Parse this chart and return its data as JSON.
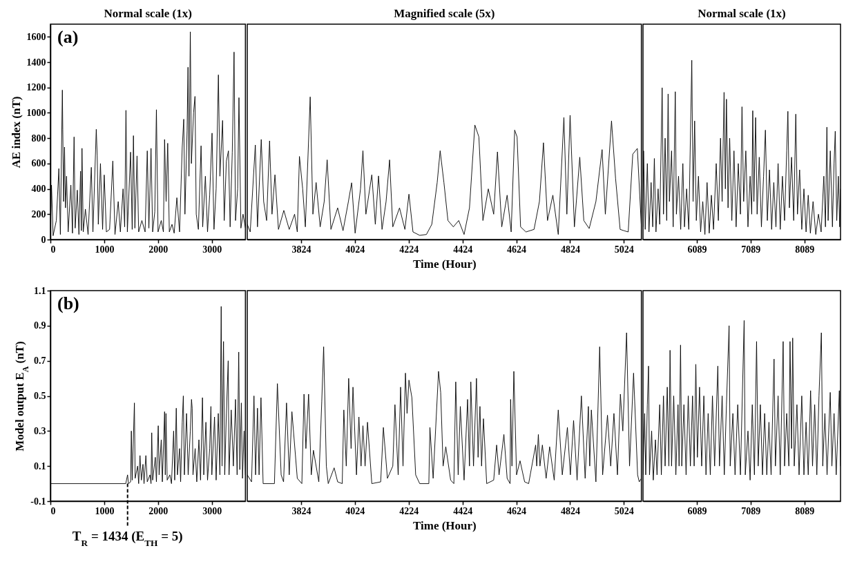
{
  "chart_data": [
    {
      "type": "line",
      "title": "Normal scale (1x)",
      "ylabel": "AE index (nT)",
      "annotations": [
        "(a)"
      ],
      "xlim": [
        0,
        3624
      ],
      "xticks": [
        0,
        1000,
        2000,
        3000
      ],
      "ylim": [
        0,
        1700
      ],
      "yticks": [
        0,
        200,
        400,
        600,
        800,
        1000,
        1200,
        1400,
        1600
      ],
      "x": [
        0,
        20,
        50,
        110,
        157,
        185,
        222,
        230,
        245,
        262,
        280,
        300,
        330,
        380,
        410,
        440,
        460,
        500,
        530,
        560,
        575,
        587,
        610,
        650,
        700,
        760,
        790,
        852,
        870,
        890,
        930,
        970,
        1000,
        1040,
        1100,
        1160,
        1200,
        1260,
        1300,
        1350,
        1380,
        1404,
        1430,
        1490,
        1520,
        1543,
        1570,
        1610,
        1640,
        1700,
        1760,
        1800,
        1830,
        1870,
        1900,
        1940,
        1970,
        2000,
        2060,
        2100,
        2122,
        2150,
        2180,
        2210,
        2260,
        2300,
        2350,
        2400,
        2450,
        2478,
        2500,
        2540,
        2557,
        2575,
        2600,
        2620,
        2660,
        2687,
        2710,
        2750,
        2800,
        2830,
        2880,
        2920,
        2960,
        3004,
        3040,
        3080,
        3122,
        3150,
        3200,
        3230,
        3270,
        3309,
        3340,
        3380,
        3413,
        3440,
        3480,
        3504,
        3540,
        3580,
        3624
      ],
      "series": [
        {
          "color": "#000000",
          "values": [
            60,
            430,
            30,
            150,
            560,
            40,
            1180,
            870,
            300,
            730,
            250,
            500,
            60,
            430,
            50,
            810,
            90,
            390,
            40,
            540,
            70,
            720,
            60,
            240,
            40,
            570,
            60,
            870,
            660,
            120,
            600,
            80,
            510,
            60,
            80,
            620,
            40,
            300,
            60,
            400,
            100,
            1020,
            60,
            690,
            80,
            820,
            90,
            660,
            60,
            150,
            60,
            700,
            90,
            720,
            60,
            220,
            1025,
            60,
            150,
            60,
            790,
            300,
            760,
            60,
            120,
            50,
            330,
            60,
            730,
            950,
            200,
            860,
            1360,
            500,
            1640,
            600,
            1000,
            1130,
            200,
            80,
            740,
            100,
            500,
            60,
            350,
            840,
            80,
            400,
            1300,
            500,
            940,
            150,
            620,
            700,
            100,
            690,
            1480,
            150,
            400,
            1120,
            90,
            200,
            90
          ]
        }
      ]
    },
    {
      "type": "line",
      "title": "Magnified scale (5x)",
      "xlabel": "Time (Hour)",
      "tick_labels": "x",
      "xlim": [
        3624,
        5089
      ],
      "xticks": [
        3824,
        4024,
        4224,
        4424,
        4624,
        4824,
        5024
      ],
      "ylim": [
        0,
        1700
      ],
      "yticks": [
        0,
        200,
        400,
        600,
        800,
        1000,
        1200,
        1400,
        1600
      ],
      "x": [
        3624,
        3635,
        3654,
        3662,
        3676,
        3685,
        3696,
        3707,
        3716,
        3727,
        3740,
        3760,
        3780,
        3800,
        3810,
        3818,
        3830,
        3840,
        3858,
        3868,
        3880,
        3895,
        3910,
        3921,
        3935,
        3960,
        3980,
        4000,
        4012,
        4025,
        4045,
        4054,
        4065,
        4087,
        4100,
        4112,
        4125,
        4140,
        4153,
        4165,
        4190,
        4210,
        4225,
        4240,
        4265,
        4290,
        4310,
        4330,
        4341,
        4355,
        4370,
        4390,
        4410,
        4430,
        4450,
        4470,
        4485,
        4500,
        4520,
        4540,
        4554,
        4570,
        4590,
        4605,
        4618,
        4627,
        4640,
        4660,
        4690,
        4710,
        4725,
        4740,
        4760,
        4780,
        4801,
        4812,
        4824,
        4840,
        4860,
        4875,
        4895,
        4920,
        4943,
        4955,
        4978,
        4993,
        5010,
        5024,
        5040,
        5057,
        5074,
        5089
      ],
      "series": [
        {
          "color": "#000000",
          "values": [
            120,
            60,
            746,
            100,
            790,
            300,
            150,
            779,
            200,
            511,
            80,
            230,
            80,
            200,
            60,
            656,
            400,
            100,
            1126,
            200,
            450,
            100,
            300,
            629,
            80,
            250,
            70,
            300,
            448,
            50,
            400,
            701,
            200,
            511,
            120,
            502,
            80,
            300,
            629,
            100,
            250,
            80,
            358,
            60,
            33,
            40,
            120,
            450,
            701,
            450,
            150,
            100,
            150,
            40,
            250,
            904,
            810,
            150,
            400,
            200,
            692,
            100,
            350,
            60,
            864,
            810,
            100,
            60,
            80,
            300,
            764,
            150,
            350,
            40,
            963,
            200,
            981,
            100,
            650,
            150,
            87,
            300,
            710,
            200,
            936,
            484,
            80,
            70,
            60,
            674,
            719,
            100
          ]
        }
      ]
    },
    {
      "type": "line",
      "title": "Normal scale (1x)",
      "tick_labels": "x",
      "xlim": [
        5089,
        8760
      ],
      "xticks": [
        6089,
        7089,
        8089
      ],
      "ylim": [
        0,
        1700
      ],
      "yticks": [
        0,
        200,
        400,
        600,
        800,
        1000,
        1200,
        1400,
        1600
      ],
      "x": [
        5089,
        5100,
        5130,
        5170,
        5200,
        5240,
        5270,
        5300,
        5330,
        5370,
        5400,
        5445,
        5470,
        5500,
        5530,
        5556,
        5580,
        5620,
        5650,
        5689,
        5710,
        5750,
        5790,
        5830,
        5860,
        5900,
        5940,
        5996,
        6020,
        6049,
        6080,
        6120,
        6160,
        6200,
        6240,
        6280,
        6320,
        6360,
        6400,
        6450,
        6490,
        6530,
        6560,
        6596,
        6620,
        6640,
        6670,
        6700,
        6740,
        6780,
        6820,
        6860,
        6900,
        6929,
        6960,
        7000,
        7040,
        7080,
        7110,
        7129,
        7150,
        7182,
        7210,
        7250,
        7290,
        7330,
        7364,
        7400,
        7440,
        7480,
        7520,
        7560,
        7600,
        7640,
        7680,
        7720,
        7760,
        7782,
        7810,
        7850,
        7890,
        7929,
        7960,
        8000,
        8040,
        8080,
        8120,
        8160,
        8200,
        8250,
        8300,
        8350,
        8400,
        8450,
        8480,
        8507,
        8530,
        8570,
        8610,
        8640,
        8662,
        8690,
        8720,
        8745,
        8760
      ],
      "series": [
        {
          "color": "#000000",
          "values": [
            100,
            700,
            80,
            600,
            60,
            450,
            100,
            640,
            60,
            400,
            120,
            1198,
            200,
            800,
            150,
            1149,
            300,
            700,
            100,
            1167,
            200,
            500,
            80,
            600,
            100,
            400,
            80,
            1415,
            300,
            936,
            150,
            500,
            60,
            300,
            40,
            450,
            50,
            350,
            80,
            600,
            150,
            800,
            300,
            1162,
            400,
            1108,
            250,
            800,
            150,
            700,
            100,
            600,
            200,
            1048,
            300,
            700,
            100,
            500,
            200,
            1017,
            300,
            963,
            200,
            650,
            100,
            500,
            864,
            150,
            550,
            80,
            450,
            100,
            600,
            80,
            500,
            150,
            700,
            1012,
            250,
            650,
            150,
            990,
            200,
            550,
            80,
            400,
            60,
            350,
            50,
            300,
            40,
            200,
            60,
            500,
            100,
            887,
            150,
            700,
            100,
            600,
            855,
            150,
            500,
            100,
            400
          ]
        }
      ]
    },
    {
      "type": "line",
      "ylabel": "Model output E$_{A}$ (nT)",
      "annotations": [
        "(b)",
        {
          "text": "T$_{R}$ = 1434 (E$_{TH}$ = 5)",
          "x": 1434,
          "y": 0
        }
      ],
      "xlim": [
        0,
        3624
      ],
      "xticks": [
        0,
        1000,
        2000,
        3000
      ],
      "ylim": [
        -0.1,
        1.1
      ],
      "yticks": [
        -0.1,
        0.1,
        0.3,
        0.5,
        0.7,
        0.9,
        1.1
      ],
      "x": [
        0,
        1400,
        1434,
        1450,
        1490,
        1504,
        1520,
        1561,
        1575,
        1620,
        1640,
        1665,
        1690,
        1720,
        1740,
        1774,
        1800,
        1850,
        1870,
        1883,
        1900,
        1950,
        1970,
        2004,
        2020,
        2060,
        2080,
        2122,
        2135,
        2148,
        2170,
        2220,
        2250,
        2290,
        2310,
        2339,
        2360,
        2400,
        2420,
        2450,
        2470,
        2490,
        2530,
        2560,
        2600,
        2622,
        2635,
        2650,
        2690,
        2720,
        2760,
        2790,
        2826,
        2850,
        2890,
        2920,
        2960,
        2983,
        3000,
        3050,
        3080,
        3120,
        3150,
        3174,
        3190,
        3217,
        3240,
        3270,
        3304,
        3320,
        3360,
        3400,
        3440,
        3470,
        3500,
        3520,
        3548,
        3570,
        3600,
        3624
      ],
      "series": [
        {
          "color": "#000000",
          "values": [
            0,
            0,
            0.05,
            0,
            0.01,
            0.3,
            0.02,
            0.46,
            0.03,
            0.1,
            0,
            0.16,
            0.02,
            0.11,
            0,
            0.16,
            0.01,
            0.05,
            0,
            0.29,
            0.02,
            0.15,
            0.01,
            0.33,
            0.05,
            0.25,
            0.01,
            0.41,
            0.05,
            0.4,
            0.02,
            0.05,
            0,
            0.3,
            0.02,
            0.43,
            0.05,
            0.2,
            0.01,
            0.35,
            0.5,
            0.05,
            0.4,
            0.05,
            0.3,
            0.48,
            0.43,
            0.05,
            0.2,
            0.01,
            0.25,
            0.02,
            0.49,
            0.05,
            0.35,
            0.02,
            0.2,
            0.44,
            0.05,
            0.38,
            0.02,
            0.4,
            0.05,
            1.01,
            0.1,
            0.81,
            0.05,
            0.4,
            0.7,
            0.05,
            0.42,
            0.1,
            0.48,
            0.05,
            0.75,
            0.08,
            0.46,
            0.03,
            0.3,
            0.05
          ]
        }
      ]
    },
    {
      "type": "line",
      "xlabel": "Time (Hour)",
      "tick_labels": "x",
      "xlim": [
        3624,
        5089
      ],
      "xticks": [
        3824,
        4024,
        4224,
        4424,
        4624,
        4824,
        5024
      ],
      "ylim": [
        -0.1,
        1.1
      ],
      "yticks": [
        -0.1,
        0.1,
        0.3,
        0.5,
        0.7,
        0.9,
        1.1
      ],
      "x": [
        3624,
        3640,
        3649,
        3655,
        3662,
        3668,
        3675,
        3683,
        3725,
        3736,
        3750,
        3759,
        3770,
        3780,
        3790,
        3810,
        3827,
        3835,
        3842,
        3852,
        3862,
        3870,
        3890,
        3901,
        3908,
        3918,
        3925,
        3947,
        3960,
        3977,
        3983,
        3992,
        4001,
        4010,
        4017,
        4030,
        4039,
        4047,
        4054,
        4062,
        4071,
        4087,
        4120,
        4130,
        4145,
        4165,
        4173,
        4185,
        4194,
        4203,
        4212,
        4218,
        4225,
        4236,
        4250,
        4265,
        4299,
        4303,
        4315,
        4335,
        4343,
        4352,
        4362,
        4380,
        4392,
        4399,
        4408,
        4416,
        4430,
        4443,
        4450,
        4455,
        4465,
        4476,
        4482,
        4489,
        4495,
        4502,
        4514,
        4540,
        4551,
        4560,
        4578,
        4590,
        4601,
        4603,
        4608,
        4615,
        4625,
        4638,
        4655,
        4670,
        4696,
        4700,
        4706,
        4712,
        4721,
        4735,
        4748,
        4765,
        4780,
        4795,
        4814,
        4825,
        4837,
        4850,
        4866,
        4880,
        4892,
        4897,
        4903,
        4920,
        4934,
        4945,
        4963,
        4975,
        4987,
        5000,
        5011,
        5020,
        5034,
        5045,
        5060,
        5075,
        5081,
        5089
      ],
      "series": [
        {
          "color": "#000000",
          "values": [
            0.05,
            0.01,
            0.5,
            0.05,
            0.43,
            0.05,
            0.49,
            0,
            0,
            0.57,
            0.05,
            0.01,
            0.46,
            0.05,
            0.41,
            0.03,
            0,
            0.51,
            0.2,
            0.51,
            0.05,
            0.19,
            0.01,
            0.47,
            0.78,
            0.1,
            0,
            0.09,
            0.01,
            0,
            0.42,
            0.1,
            0.6,
            0.2,
            0.55,
            0.05,
            0.38,
            0.1,
            0.33,
            0.1,
            0.35,
            0,
            0.01,
            0.32,
            0.03,
            0.1,
            0.45,
            0.05,
            0.55,
            0.1,
            0.63,
            0.4,
            0.59,
            0.49,
            0.05,
            0,
            0,
            0.32,
            0.03,
            0.64,
            0.52,
            0.1,
            0.21,
            0.02,
            0,
            0.58,
            0.05,
            0.44,
            0.02,
            0.48,
            0.1,
            0.58,
            0.1,
            0.6,
            0.15,
            0.44,
            0.1,
            0.37,
            0,
            0.02,
            0.22,
            0.05,
            0.28,
            0.03,
            0,
            0.48,
            0.1,
            0.64,
            0.05,
            0.13,
            0.01,
            0,
            0.22,
            0.1,
            0.28,
            0.1,
            0.22,
            0.03,
            0.21,
            0.02,
            0.42,
            0.05,
            0.32,
            0.05,
            0.36,
            0.02,
            0.5,
            0.03,
            0.44,
            0.1,
            0.42,
            0.01,
            0.78,
            0.05,
            0.39,
            0.1,
            0.4,
            0.05,
            0.51,
            0.3,
            0.86,
            0.1,
            0.63,
            0.05,
            0.01,
            0.03
          ]
        }
      ]
    },
    {
      "type": "line",
      "tick_labels": "x",
      "xlim": [
        5089,
        8760
      ],
      "xticks": [
        6089,
        7089,
        8089
      ],
      "ylim": [
        -0.1,
        1.1
      ],
      "yticks": [
        -0.1,
        0.1,
        0.3,
        0.5,
        0.7,
        0.9,
        1.1
      ],
      "x": [
        5089,
        5120,
        5140,
        5170,
        5192,
        5210,
        5250,
        5280,
        5320,
        5350,
        5400,
        5430,
        5470,
        5500,
        5540,
        5570,
        5592,
        5620,
        5660,
        5700,
        5740,
        5760,
        5787,
        5810,
        5850,
        5890,
        5930,
        5970,
        6010,
        6040,
        6071,
        6100,
        6140,
        6180,
        6220,
        6260,
        6300,
        6340,
        6380,
        6420,
        6480,
        6510,
        6560,
        6600,
        6640,
        6689,
        6710,
        6760,
        6800,
        6850,
        6900,
        6969,
        6990,
        7040,
        7080,
        7120,
        7160,
        7200,
        7230,
        7270,
        7310,
        7350,
        7390,
        7430,
        7470,
        7525,
        7550,
        7600,
        7640,
        7694,
        7720,
        7760,
        7800,
        7822,
        7850,
        7871,
        7900,
        7950,
        7990,
        8040,
        8080,
        8120,
        8160,
        8204,
        8240,
        8280,
        8320,
        8360,
        8404,
        8430,
        8470,
        8510,
        8569,
        8600,
        8640,
        8680,
        8738,
        8760
      ],
      "series": [
        {
          "color": "#000000",
          "values": [
            0.05,
            0.4,
            0.05,
            0.45,
            0.67,
            0.05,
            0.3,
            0.02,
            0.25,
            0.05,
            0.45,
            0.05,
            0.5,
            0.1,
            0.55,
            0.1,
            0.76,
            0.1,
            0.5,
            0.05,
            0.45,
            0.1,
            0.79,
            0.1,
            0.45,
            0.05,
            0.5,
            0.1,
            0.5,
            0.1,
            0.68,
            0.15,
            0.55,
            0.1,
            0.5,
            0.05,
            0.4,
            0.05,
            0.5,
            0.1,
            0.67,
            0.1,
            0.5,
            0.05,
            0.45,
            0.9,
            0.1,
            0.4,
            0.05,
            0.45,
            0.05,
            0.93,
            0.05,
            0.3,
            0.02,
            0.45,
            0.05,
            0.81,
            0.1,
            0.45,
            0.05,
            0.4,
            0.05,
            0.35,
            0.05,
            0.71,
            0.1,
            0.5,
            0.05,
            0.81,
            0.1,
            0.4,
            0.1,
            0.81,
            0.2,
            0.83,
            0.1,
            0.45,
            0.05,
            0.5,
            0.05,
            0.35,
            0.05,
            0.53,
            0.1,
            0.45,
            0.05,
            0.5,
            0.86,
            0.1,
            0.4,
            0.05,
            0.52,
            0.1,
            0.4,
            0.05,
            0.53,
            0.1
          ]
        }
      ]
    }
  ]
}
